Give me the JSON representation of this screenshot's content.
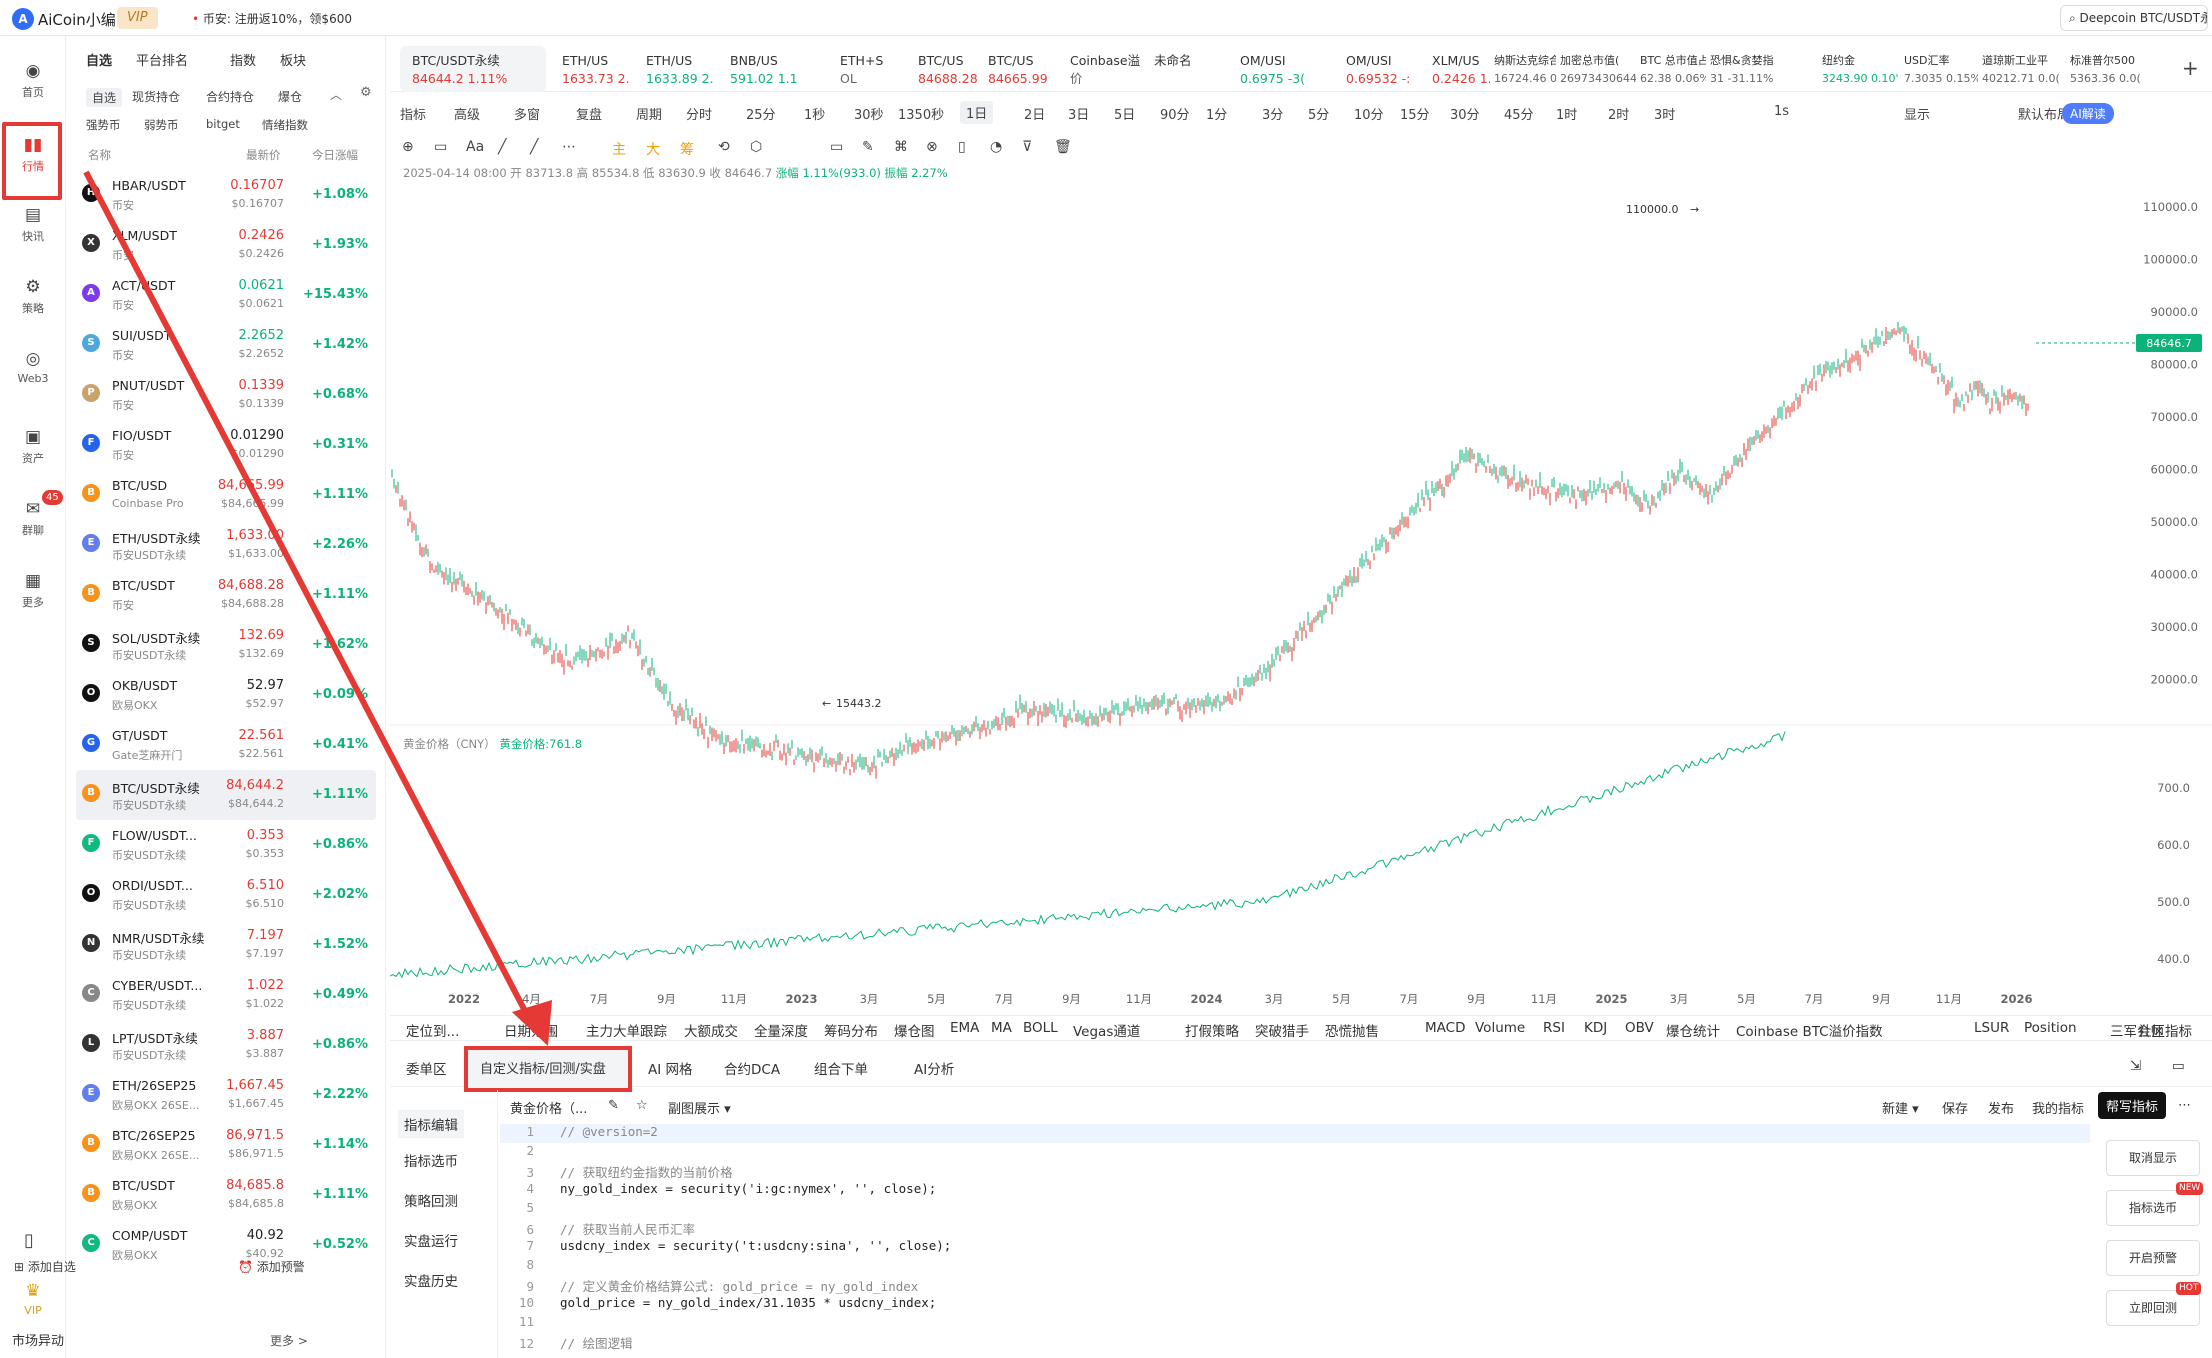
{
  "app": {
    "name": "AiCoin小编",
    "vip": "VIP",
    "ticker_note": "币安: 注册返10%，领$600",
    "search": "Deepcoin BTC/USDT永"
  },
  "rail": [
    {
      "label": "首页",
      "icon": "home-icon"
    },
    {
      "label": "行情",
      "icon": "market-icon"
    },
    {
      "label": "快讯",
      "icon": "news-icon"
    },
    {
      "label": "策略",
      "icon": "strategy-icon"
    },
    {
      "label": "Web3",
      "icon": "web3-icon"
    },
    {
      "label": "资产",
      "icon": "wallet-icon"
    },
    {
      "label": "群聊",
      "icon": "chat-icon",
      "badge": "45"
    },
    {
      "label": "更多",
      "icon": "more-icon"
    },
    {
      "label": "VIP",
      "icon": "vip-icon"
    }
  ],
  "watchlist": {
    "tabs": [
      "自选",
      "平台排名",
      "指数",
      "板块"
    ],
    "subtabs": [
      "自选",
      "现货持仓",
      "合约持仓",
      "爆仓"
    ],
    "subtabs2": [
      "强势币",
      "弱势币",
      "bitget",
      "情绪指数"
    ],
    "cols": [
      "名称",
      "最新价",
      "今日涨幅"
    ],
    "rows": [
      {
        "name": "HBAR/USDT",
        "exch": "币安",
        "price": "0.16707",
        "sub": "$0.16707",
        "chg": "+1.08%",
        "color": "up",
        "icon": "#111"
      },
      {
        "name": "XLM/USDT",
        "exch": "币安",
        "price": "0.2426",
        "sub": "$0.2426",
        "chg": "+1.93%",
        "color": "up",
        "icon": "#333"
      },
      {
        "name": "ACT/USDT",
        "exch": "币安",
        "price": "0.0621",
        "sub": "$0.0621",
        "chg": "+15.43%",
        "color": "dn",
        "icon": "#7c3aed"
      },
      {
        "name": "SUI/USDT",
        "exch": "币安",
        "price": "2.2652",
        "sub": "$2.2652",
        "chg": "+1.42%",
        "color": "dn",
        "icon": "#4ea8de"
      },
      {
        "name": "PNUT/USDT",
        "exch": "币安",
        "price": "0.1339",
        "sub": "$0.1339",
        "chg": "+0.68%",
        "color": "up",
        "icon": "#c8a36a"
      },
      {
        "name": "FIO/USDT",
        "exch": "币安",
        "price": "0.01290",
        "sub": "$0.01290",
        "chg": "+0.31%",
        "color": "plain",
        "icon": "#2563eb"
      },
      {
        "name": "BTC/USD",
        "exch": "Coinbase Pro",
        "price": "84,665.99",
        "sub": "$84,665.99",
        "chg": "+1.11%",
        "color": "up",
        "icon": "#f7931a"
      },
      {
        "name": "ETH/USDT永续",
        "exch": "币安USDT永续",
        "price": "1,633.00",
        "sub": "$1,633.00",
        "chg": "+2.26%",
        "color": "up",
        "icon": "#627eea"
      },
      {
        "name": "BTC/USDT",
        "exch": "币安",
        "price": "84,688.28",
        "sub": "$84,688.28",
        "chg": "+1.11%",
        "color": "up",
        "icon": "#f7931a"
      },
      {
        "name": "SOL/USDT永续",
        "exch": "币安USDT永续",
        "price": "132.69",
        "sub": "$132.69",
        "chg": "+1.62%",
        "color": "up",
        "icon": "#111"
      },
      {
        "name": "OKB/USDT",
        "exch": "欧易OKX",
        "price": "52.97",
        "sub": "$52.97",
        "chg": "+0.09%",
        "color": "plain",
        "icon": "#111"
      },
      {
        "name": "GT/USDT",
        "exch": "Gate芝麻开门",
        "price": "22.561",
        "sub": "$22.561",
        "chg": "+0.41%",
        "color": "up",
        "icon": "#2563eb"
      },
      {
        "name": "BTC/USDT永续",
        "exch": "币安USDT永续",
        "price": "84,644.2",
        "sub": "$84,644.2",
        "chg": "+1.11%",
        "color": "up",
        "icon": "#f7931a"
      },
      {
        "name": "FLOW/USDT...",
        "exch": "币安USDT永续",
        "price": "0.353",
        "sub": "$0.353",
        "chg": "+0.86%",
        "color": "up",
        "icon": "#10b981"
      },
      {
        "name": "ORDI/USDT...",
        "exch": "币安USDT永续",
        "price": "6.510",
        "sub": "$6.510",
        "chg": "+2.02%",
        "color": "up",
        "icon": "#111"
      },
      {
        "name": "NMR/USDT永续",
        "exch": "币安USDT永续",
        "price": "7.197",
        "sub": "$7.197",
        "chg": "+1.52%",
        "color": "up",
        "icon": "#333"
      },
      {
        "name": "CYBER/USDT...",
        "exch": "币安USDT永续",
        "price": "1.022",
        "sub": "$1.022",
        "chg": "+0.49%",
        "color": "up",
        "icon": "#888"
      },
      {
        "name": "LPT/USDT永续",
        "exch": "币安USDT永续",
        "price": "3.887",
        "sub": "$3.887",
        "chg": "+0.86%",
        "color": "up",
        "icon": "#333"
      },
      {
        "name": "ETH/26SEP25",
        "exch": "欧易OKX 26SE...",
        "price": "1,667.45",
        "sub": "$1,667.45",
        "chg": "+2.22%",
        "color": "up",
        "icon": "#627eea"
      },
      {
        "name": "BTC/26SEP25",
        "exch": "欧易OKX 26SE...",
        "price": "86,971.5",
        "sub": "$86,971.5",
        "chg": "+1.14%",
        "color": "up",
        "icon": "#f7931a"
      },
      {
        "name": "BTC/USDT",
        "exch": "欧易OKX",
        "price": "84,685.8",
        "sub": "$84,685.8",
        "chg": "+1.11%",
        "color": "up",
        "icon": "#f7931a"
      },
      {
        "name": "COMP/USDT",
        "exch": "欧易OKX",
        "price": "40.92",
        "sub": "$40.92",
        "chg": "+0.52%",
        "color": "plain",
        "icon": "#10b981"
      }
    ],
    "add": "添加自选",
    "alert": "添加预警",
    "market": "市场异动",
    "more": "更多 >"
  },
  "ticker_tabs": [
    {
      "name": "BTC/USDT永续",
      "price": "84644.2 1.11%",
      "color": "up"
    },
    {
      "name": "ETH/US",
      "price": "1633.73 2.",
      "color": "up"
    },
    {
      "name": "ETH/US",
      "price": "1633.89 2.",
      "color": "dn"
    },
    {
      "name": "BNB/US",
      "price": "591.02 1.1",
      "color": "dn"
    },
    {
      "name": "ETH+S",
      "price": "OL",
      "color": "plain"
    },
    {
      "name": "BTC/US",
      "price": "84688.28",
      "color": "up"
    },
    {
      "name": "BTC/US",
      "price": "84665.99",
      "color": "up"
    },
    {
      "name": "Coinbase溢",
      "price": "价",
      "color": "plain"
    },
    {
      "name": "未命名",
      "price": "",
      "color": "plain"
    },
    {
      "name": "OM/USI",
      "price": "0.6975 -3(",
      "color": "dn"
    },
    {
      "name": "OM/USI",
      "price": "0.69532 -:",
      "color": "up"
    },
    {
      "name": "XLM/US",
      "price": "0.2426 1.9",
      "color": "up"
    },
    {
      "name": "纳斯达克综合",
      "price": "16724.46 0.0(",
      "color": "plain"
    },
    {
      "name": "加密总市值(",
      "price": "26973430644",
      "color": "plain"
    },
    {
      "name": "BTC 总市值占",
      "price": "62.38 0.06%",
      "color": "plain"
    },
    {
      "name": "恐惧&贪婪指",
      "price": "31 -31.11%",
      "color": "plain"
    },
    {
      "name": "纽约金",
      "price": "3243.90 0.10'",
      "color": "dn"
    },
    {
      "name": "USD汇率",
      "price": "7.3035 0.15%",
      "color": "plain"
    },
    {
      "name": "道琼斯工业平",
      "price": "40212.71 0.0(",
      "color": "plain"
    },
    {
      "name": "标准普尔500",
      "price": "5363.36 0.0(",
      "color": "plain"
    }
  ],
  "toolbar": [
    "指标",
    "高级",
    "多窗",
    "复盘",
    "周期",
    "分时",
    "25分",
    "1秒",
    "30秒",
    "1350秒",
    "1日",
    "2日",
    "3日",
    "5日",
    "90分",
    "1分",
    "3分",
    "5分",
    "10分",
    "15分",
    "30分",
    "45分",
    "1时",
    "2时",
    "3时",
    "1s",
    "显示",
    "默认布局",
    "AI解读"
  ],
  "draw_tools": [
    "主",
    "大",
    "筹"
  ],
  "ohlc": {
    "date": "2025-04-14 08:00",
    "open": "开 83713.8",
    "high": "高 85534.8",
    "low": "低 83630.9",
    "close": "收 84646.7",
    "chg": "涨幅 1.11%(933.0)",
    "amp": "振幅 2.27%"
  },
  "chart_data": {
    "type": "line",
    "main": {
      "price_axis": [
        "110000.0",
        "100000.0",
        "90000.0",
        "80000.0",
        "70000.0",
        "60000.0",
        "50000.0",
        "40000.0",
        "30000.0",
        "20000.0"
      ],
      "high_label": "110000.0",
      "low_label": "15443.2",
      "last_price": "84646.7"
    },
    "gold": {
      "label": "黄金价格（CNY）",
      "value_label": "黄金价格:761.8",
      "axis": [
        "700.0",
        "600.0",
        "500.0",
        "400.0"
      ]
    },
    "x_axis": [
      "2022",
      "4月",
      "7月",
      "9月",
      "11月",
      "2023",
      "3月",
      "5月",
      "7月",
      "9月",
      "11月",
      "2024",
      "3月",
      "5月",
      "7月",
      "9月",
      "11月",
      "2025",
      "3月",
      "5月",
      "7月",
      "9月",
      "11月",
      "2026"
    ]
  },
  "indicators": [
    "定位到...",
    "日期范围",
    "主力大单跟踪",
    "大额成交",
    "全量深度",
    "筹码分布",
    "爆仓图",
    "EMA",
    "MA",
    "BOLL",
    "Vegas通道",
    "打假策略",
    "突破猎手",
    "恐慌抛售",
    "MACD",
    "Volume",
    "RSI",
    "KDJ",
    "OBV",
    "爆仓统计",
    "Coinbase BTC溢价指数",
    "LSUR",
    "Position",
    "三军会师",
    "社区指标"
  ],
  "bottom_tabs": [
    "委单区",
    "自定义指标/回测/实盘",
    "AI 网格",
    "合约DCA",
    "组合下单",
    "AI分析"
  ],
  "bottom_side": [
    "指标编辑",
    "指标选币",
    "策略回测",
    "实盘运行",
    "实盘历史"
  ],
  "code_head": {
    "name": "黄金价格（...",
    "sub": "副图展示",
    "new": "新建",
    "save": "保存",
    "publish": "发布",
    "mine": "我的指标",
    "help": "帮写指标"
  },
  "code": [
    {
      "n": "1",
      "t": "// @version=2",
      "k": "cm"
    },
    {
      "n": "2",
      "t": "",
      "k": ""
    },
    {
      "n": "3",
      "t": "// 获取纽约金指数的当前价格",
      "k": "cm"
    },
    {
      "n": "4",
      "t": "ny_gold_index = security('i:gc:nymex', '', close);",
      "k": ""
    },
    {
      "n": "5",
      "t": "",
      "k": ""
    },
    {
      "n": "6",
      "t": "// 获取当前人民币汇率",
      "k": "cm"
    },
    {
      "n": "7",
      "t": "usdcny_index = security('t:usdcny:sina', '', close);",
      "k": ""
    },
    {
      "n": "8",
      "t": "",
      "k": ""
    },
    {
      "n": "9",
      "t": "// 定义黄金价格结算公式: gold_price = ny_gold_index",
      "k": "cm"
    },
    {
      "n": "10",
      "t": "gold_price = ny_gold_index/31.1035 * usdcny_index;",
      "k": ""
    },
    {
      "n": "11",
      "t": "",
      "k": ""
    },
    {
      "n": "12",
      "t": "// 绘图逻辑",
      "k": "cm"
    }
  ],
  "right_buttons": [
    {
      "label": "取消显示",
      "badge": ""
    },
    {
      "label": "指标选币",
      "badge": "NEW"
    },
    {
      "label": "开启预警",
      "badge": ""
    },
    {
      "label": "立即回测",
      "badge": "HOT"
    }
  ]
}
